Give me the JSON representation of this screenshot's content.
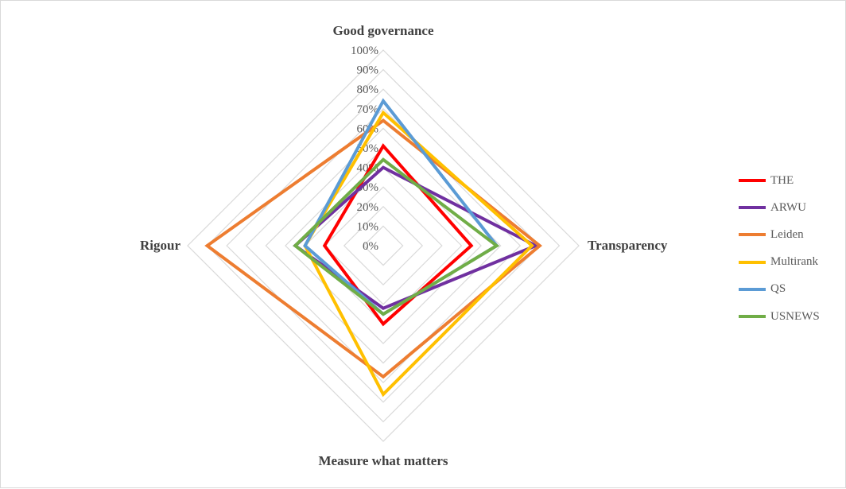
{
  "chart_data": {
    "type": "radar",
    "axes": [
      "Good governance",
      "Transparency",
      "Measure what matters",
      "Rigour"
    ],
    "ticks": [
      "0%",
      "10%",
      "20%",
      "30%",
      "40%",
      "50%",
      "60%",
      "70%",
      "80%",
      "90%",
      "100%"
    ],
    "rlim": [
      0,
      100
    ],
    "grid": true,
    "legend_position": "right",
    "series": [
      {
        "name": "THE",
        "color": "#ff0000",
        "values": [
          51,
          45,
          40,
          30
        ]
      },
      {
        "name": "ARWU",
        "color": "#7030a0",
        "values": [
          40,
          78,
          32,
          45
        ]
      },
      {
        "name": "Leiden",
        "color": "#ed7d31",
        "values": [
          64,
          80,
          67,
          90
        ]
      },
      {
        "name": "Multirank",
        "color": "#ffc000",
        "values": [
          68,
          76,
          76,
          40
        ]
      },
      {
        "name": "QS",
        "color": "#5b9bd5",
        "values": [
          74,
          58,
          35,
          40
        ]
      },
      {
        "name": "USNEWS",
        "color": "#70ad47",
        "values": [
          44,
          58,
          35,
          45
        ]
      }
    ]
  }
}
